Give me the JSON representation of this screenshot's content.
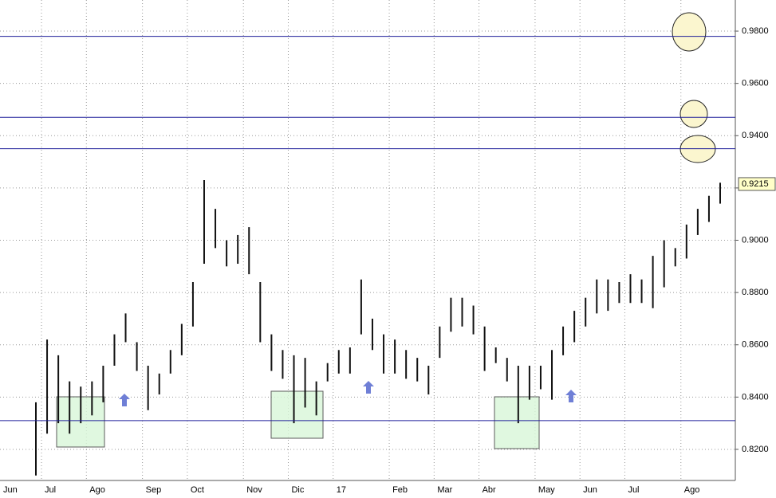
{
  "chart_data": {
    "type": "highlow",
    "categories": [
      "Jun",
      "Jul",
      null,
      null,
      null,
      "Ago",
      null,
      null,
      null,
      null,
      "Sep",
      null,
      null,
      null,
      "Oct",
      null,
      null,
      null,
      null,
      "Nov",
      null,
      null,
      null,
      "Dic",
      null,
      null,
      null,
      "17",
      null,
      null,
      null,
      null,
      "Feb",
      null,
      null,
      null,
      "Mar",
      null,
      null,
      null,
      "Abr",
      null,
      null,
      null,
      null,
      "May",
      null,
      null,
      null,
      "Jun",
      null,
      null,
      null,
      "Jul",
      null,
      null,
      null,
      null,
      "Ago",
      null,
      null,
      null
    ],
    "high": [
      0.838,
      0.862,
      0.856,
      0.846,
      0.844,
      0.846,
      0.852,
      0.864,
      0.872,
      0.861,
      0.852,
      0.849,
      0.858,
      0.868,
      0.884,
      0.923,
      0.912,
      0.9,
      0.902,
      0.905,
      0.884,
      0.864,
      0.858,
      0.856,
      0.855,
      0.846,
      0.853,
      0.858,
      0.859,
      0.885,
      0.87,
      0.864,
      0.862,
      0.858,
      0.855,
      0.852,
      0.867,
      0.878,
      0.878,
      0.875,
      0.867,
      0.859,
      0.855,
      0.852,
      0.852,
      0.852,
      0.858,
      0.867,
      0.873,
      0.878,
      0.885,
      0.885,
      0.884,
      0.887,
      0.885,
      0.894,
      0.9,
      0.897,
      0.906,
      0.912,
      0.917,
      0.922
    ],
    "low": [
      0.81,
      0.826,
      0.83,
      0.826,
      0.83,
      0.833,
      0.838,
      0.852,
      0.861,
      0.85,
      0.835,
      0.841,
      0.849,
      0.856,
      0.867,
      0.891,
      0.897,
      0.89,
      0.891,
      0.887,
      0.861,
      0.85,
      0.847,
      0.83,
      0.836,
      0.833,
      0.846,
      0.849,
      0.849,
      0.864,
      0.858,
      0.849,
      0.849,
      0.847,
      0.846,
      0.841,
      0.855,
      0.865,
      0.867,
      0.864,
      0.85,
      0.853,
      0.846,
      0.83,
      0.839,
      0.843,
      0.839,
      0.856,
      0.861,
      0.867,
      0.872,
      0.873,
      0.876,
      0.876,
      0.876,
      0.874,
      0.882,
      0.89,
      0.893,
      0.902,
      0.907,
      0.914
    ],
    "color": "#111111",
    "levels": [
      0.978,
      0.947,
      0.935,
      0.831
    ],
    "level_color": "#1f1f9a",
    "last_price": {
      "value": 0.9215,
      "label": "0.9215"
    },
    "ylim": [
      0.8081,
      0.9919
    ],
    "yticks": [
      {
        "value": 0.82,
        "label": "0.8200"
      },
      {
        "value": 0.84,
        "label": "0.8400"
      },
      {
        "value": 0.86,
        "label": "0.8600"
      },
      {
        "value": 0.88,
        "label": "0.8800"
      },
      {
        "value": 0.9,
        "label": "0.9000"
      },
      {
        "value": 0.92,
        "label": "0.9200"
      },
      {
        "value": 0.94,
        "label": "0.9400"
      },
      {
        "value": 0.96,
        "label": "0.9600"
      },
      {
        "value": 0.98,
        "label": "0.9800"
      }
    ],
    "grid": true
  }
}
